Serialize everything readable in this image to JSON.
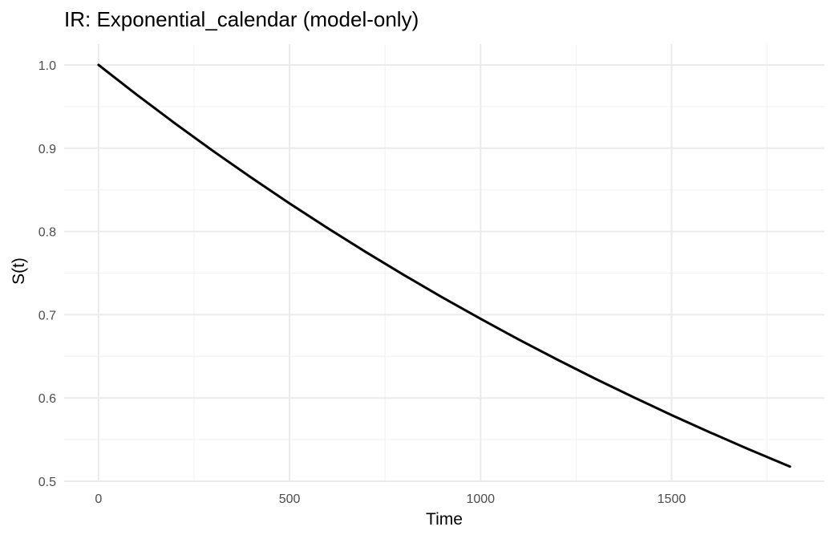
{
  "chart_data": {
    "type": "line",
    "title": "IR: Exponential_calendar (model-only)",
    "xlabel": "Time",
    "ylabel": "S(t)",
    "xlim": [
      -90,
      1900
    ],
    "ylim": [
      0.5,
      1.025
    ],
    "x_ticks": [
      0,
      500,
      1000,
      1500
    ],
    "x_tick_labels": [
      "0",
      "500",
      "1000",
      "1500"
    ],
    "y_ticks": [
      0.5,
      0.6,
      0.7,
      0.8,
      0.9,
      1.0
    ],
    "y_tick_labels": [
      "0.5",
      "0.6",
      "0.7",
      "0.8",
      "0.9",
      "1.0"
    ],
    "x_minor_ticks": [
      250,
      750,
      1250,
      1750
    ],
    "y_minor_ticks": [
      0.55,
      0.65,
      0.75,
      0.85,
      0.95
    ],
    "grid": true,
    "legend": "none",
    "series": [
      {
        "color": "#000000",
        "x": [
          0,
          100,
          200,
          300,
          400,
          500,
          600,
          700,
          800,
          900,
          1000,
          1100,
          1200,
          1300,
          1400,
          1500,
          1600,
          1700,
          1810
        ],
        "y": [
          1.0,
          0.9643,
          0.9298,
          0.8966,
          0.8646,
          0.8337,
          0.8039,
          0.7752,
          0.7475,
          0.7208,
          0.6951,
          0.6702,
          0.6463,
          0.6232,
          0.601,
          0.5795,
          0.5588,
          0.5388,
          0.5176
        ]
      }
    ]
  }
}
